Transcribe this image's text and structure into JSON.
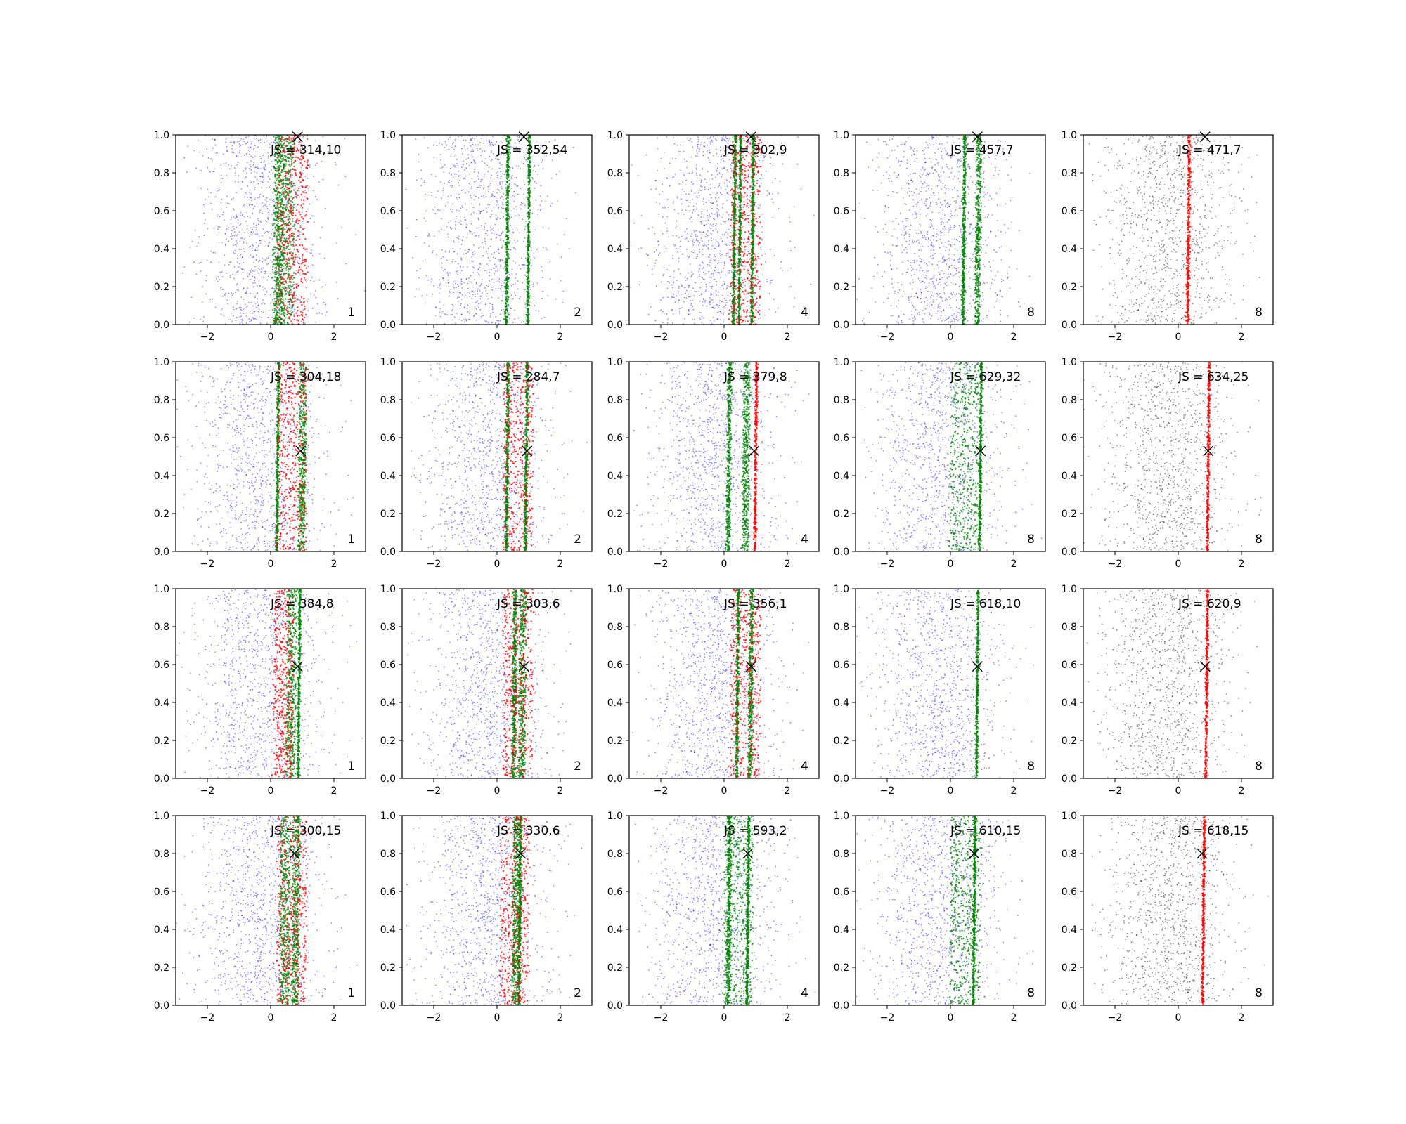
{
  "figure": {
    "rows": 4,
    "cols": 5
  },
  "chart_data": {
    "type": "scatter",
    "description_grid": "4 rows x 5 columns of scatter panels",
    "x_axis": {
      "range": [
        -3,
        3
      ],
      "ticks": [
        -2,
        0,
        2
      ],
      "tick_labels": [
        "−2",
        "0",
        "2"
      ]
    },
    "y_axis": {
      "range": [
        0,
        1
      ],
      "ticks": [
        0,
        0.2,
        0.4,
        0.6,
        0.8,
        1.0
      ],
      "tick_labels": [
        "0.0",
        "0.2",
        "0.4",
        "0.6",
        "0.8",
        "1.0"
      ]
    },
    "colors": {
      "background_points": "#0000ff",
      "band_a": "#008000",
      "band_b": "#ff0000",
      "gray_points": "#333333",
      "marker": "#000000"
    },
    "rows": [
      {
        "marker": {
          "x": 0.85,
          "y": 0.99
        },
        "panels": [
          {
            "js": "JS = 314,10",
            "k": "1",
            "style": "mixed",
            "green": [
              [
                0.2,
                0.55
              ],
              [
                0.1,
                0.3
              ]
            ],
            "red": [
              [
                0.2,
                0.95
              ]
            ]
          },
          {
            "js": "JS = 352,54",
            "k": "2",
            "style": "mixed",
            "green": [
              [
                0.3,
                0.05
              ],
              [
                1.0,
                0.0
              ]
            ],
            "red": []
          },
          {
            "js": "JS = 302,9",
            "k": "4",
            "style": "mixed",
            "green": [
              [
                0.3,
                0.05
              ],
              [
                0.5,
                0.0
              ],
              [
                0.9,
                0.0
              ]
            ],
            "red": [
              [
                0.2,
                0.95
              ]
            ]
          },
          {
            "js": "JS = 457,7",
            "k": "8",
            "style": "mixed",
            "green": [
              [
                0.4,
                0.05
              ],
              [
                0.8,
                0.15
              ]
            ],
            "red": []
          },
          {
            "js": "JS = 471,7",
            "k": "8",
            "style": "gray",
            "red": [
              [
                0.3,
                0.05
              ]
            ]
          }
        ]
      },
      {
        "marker": {
          "x": 0.95,
          "y": 0.53
        },
        "panels": [
          {
            "js": "JS = 304,18",
            "k": "1",
            "style": "mixed",
            "green": [
              [
                0.2,
                0.05
              ],
              [
                0.9,
                0.2
              ]
            ],
            "red": [
              [
                0.2,
                0.95
              ]
            ]
          },
          {
            "js": "JS = 284,7",
            "k": "2",
            "style": "mixed",
            "green": [
              [
                0.3,
                0.05
              ],
              [
                0.9,
                0.05
              ]
            ],
            "red": [
              [
                0.2,
                0.95
              ]
            ]
          },
          {
            "js": "JS = 379,8",
            "k": "4",
            "style": "mixed",
            "green": [
              [
                0.1,
                0.1
              ],
              [
                0.6,
                0.2
              ]
            ],
            "red": [
              [
                1.0,
                0.0
              ]
            ]
          },
          {
            "js": "JS = 629,32",
            "k": "8",
            "style": "mixed",
            "green": [
              [
                0.0,
                0.95
              ],
              [
                0.95,
                0.0
              ]
            ],
            "red": []
          },
          {
            "js": "JS = 634,25",
            "k": "8",
            "style": "gray",
            "red": [
              [
                0.95,
                0.0
              ]
            ]
          }
        ]
      },
      {
        "marker": {
          "x": 0.85,
          "y": 0.59
        },
        "panels": [
          {
            "js": "JS = 384,8",
            "k": "1",
            "style": "mixed",
            "green": [
              [
                0.9,
                0.0
              ],
              [
                0.5,
                0.3
              ]
            ],
            "red": [
              [
                0.1,
                0.6
              ]
            ]
          },
          {
            "js": "JS = 303,6",
            "k": "2",
            "style": "mixed",
            "green": [
              [
                0.5,
                0.1
              ],
              [
                0.7,
                0.2
              ]
            ],
            "red": [
              [
                0.2,
                0.95
              ]
            ]
          },
          {
            "js": "JS = 356,1",
            "k": "4",
            "style": "mixed",
            "green": [
              [
                0.4,
                0.05
              ],
              [
                0.8,
                0.1
              ]
            ],
            "red": [
              [
                0.2,
                0.95
              ]
            ]
          },
          {
            "js": "JS = 618,10",
            "k": "8",
            "style": "mixed",
            "green": [
              [
                0.85,
                0.0
              ]
            ],
            "red": []
          },
          {
            "js": "JS = 620,9",
            "k": "8",
            "style": "gray",
            "red": [
              [
                0.9,
                0.0
              ]
            ]
          }
        ]
      },
      {
        "marker": {
          "x": 0.75,
          "y": 0.8
        },
        "panels": [
          {
            "js": "JS = 300,15",
            "k": "1",
            "style": "mixed",
            "green": [
              [
                0.3,
                0.3
              ],
              [
                0.7,
                0.2
              ]
            ],
            "red": [
              [
                0.2,
                0.95
              ]
            ]
          },
          {
            "js": "JS = 330,6",
            "k": "2",
            "style": "mixed",
            "green": [
              [
                0.7,
                0.05
              ],
              [
                0.5,
                0.2
              ]
            ],
            "red": [
              [
                0.1,
                0.9
              ]
            ]
          },
          {
            "js": "JS = 593,2",
            "k": "4",
            "style": "mixed",
            "green": [
              [
                0.0,
                0.9
              ],
              [
                0.1,
                0.1
              ],
              [
                0.75,
                0.0
              ]
            ],
            "red": []
          },
          {
            "js": "JS = 610,15",
            "k": "8",
            "style": "mixed",
            "green": [
              [
                0.0,
                0.95
              ],
              [
                0.75,
                0.0
              ]
            ],
            "red": []
          },
          {
            "js": "JS = 618,15",
            "k": "8",
            "style": "gray",
            "red": [
              [
                0.8,
                0.0
              ]
            ]
          }
        ]
      }
    ]
  }
}
